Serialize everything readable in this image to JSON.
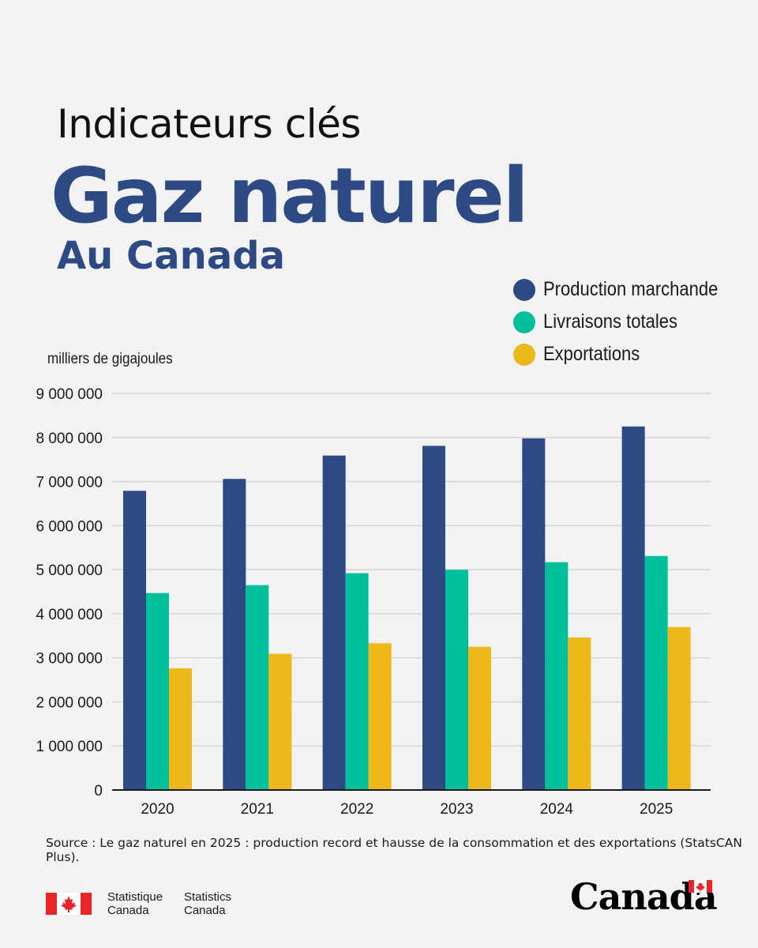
{
  "header": {
    "kicker": "Indicateurs clés",
    "title": "Gaz naturel",
    "subtitle": "Au Canada"
  },
  "colors": {
    "production": "#2e4a85",
    "livraisons": "#00bf9b",
    "exportations": "#ecb81a",
    "background": "#f2f2f2",
    "flag_red": "#e8262a"
  },
  "chart_data": {
    "type": "bar",
    "ylabel": "milliers de gigajoules",
    "categories": [
      "2020",
      "2021",
      "2022",
      "2023",
      "2024",
      "2025"
    ],
    "series": [
      {
        "name": "Production marchande",
        "values": [
          6790000,
          7060000,
          7590000,
          7810000,
          7980000,
          8250000
        ]
      },
      {
        "name": "Livraisons totales",
        "values": [
          4470000,
          4650000,
          4920000,
          5000000,
          5170000,
          5310000
        ]
      },
      {
        "name": "Exportations",
        "values": [
          2760000,
          3090000,
          3330000,
          3250000,
          3460000,
          3700000
        ]
      }
    ],
    "yticks": [
      "0",
      "1 000 000",
      "2 000 000",
      "3 000 000",
      "4 000 000",
      "5 000 000",
      "6 000 000",
      "7 000 000",
      "8 000 000",
      "9 000 000"
    ],
    "ylim": [
      0,
      9000000
    ],
    "grid": true,
    "legend_position": "top-right"
  },
  "source": "Source : Le gaz naturel en 2025 : production record et hausse de la consommation et des exportations (StatsCAN Plus).",
  "footer": {
    "agency_fr_line1": "Statistique",
    "agency_fr_line2": "Canada",
    "agency_en_line1": "Statistics",
    "agency_en_line2": "Canada",
    "wordmark": "Canada"
  }
}
